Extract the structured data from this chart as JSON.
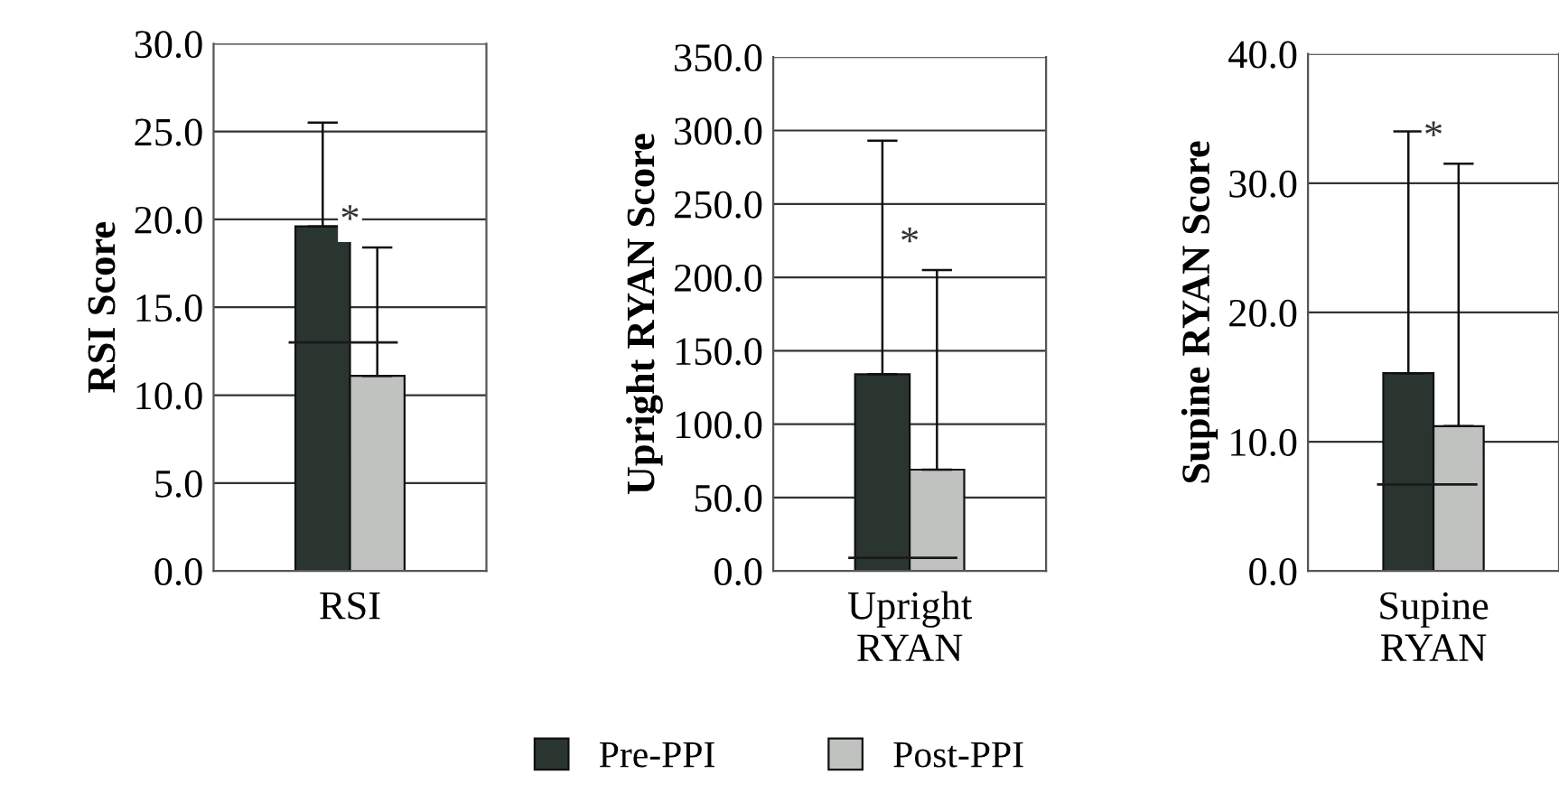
{
  "chart_data": [
    {
      "type": "bar",
      "categories": [
        "RSI"
      ],
      "ylabel": "RSI Score",
      "ylim": [
        0,
        30
      ],
      "yticks": [
        {
          "value": 0,
          "label": "0.0"
        },
        {
          "value": 5,
          "label": "5.0"
        },
        {
          "value": 10,
          "label": "10.0"
        },
        {
          "value": 15,
          "label": "15.0"
        },
        {
          "value": 20,
          "label": "20.0"
        },
        {
          "value": 25,
          "label": "25.0"
        },
        {
          "value": 30,
          "label": "30.0"
        }
      ],
      "grid": "y",
      "series": [
        {
          "color": "#2a3530",
          "values": [
            19.6
          ],
          "errors": [
            [
              19.6,
              25.5
            ]
          ]
        },
        {
          "color": "#c0c2bf",
          "values": [
            11.1
          ],
          "errors": [
            [
              11.1,
              18.4
            ]
          ]
        }
      ],
      "ref_lines": [
        {
          "axis": "y",
          "value": 13.0,
          "color": "#1a1a1a"
        }
      ],
      "annotations": [
        "*"
      ]
    },
    {
      "type": "bar",
      "categories": [
        "Upright\nRYAN"
      ],
      "ylabel": "Upright RYAN Score",
      "ylim": [
        0,
        350
      ],
      "yticks": [
        {
          "value": 0,
          "label": "0.0"
        },
        {
          "value": 50,
          "label": "50.0"
        },
        {
          "value": 100,
          "label": "100.0"
        },
        {
          "value": 150,
          "label": "150.0"
        },
        {
          "value": 200,
          "label": "200.0"
        },
        {
          "value": 250,
          "label": "250.0"
        },
        {
          "value": 300,
          "label": "300.0"
        },
        {
          "value": 350,
          "label": "350.0"
        }
      ],
      "grid": "y",
      "legend": "bottom",
      "series": [
        {
          "name": "Pre-PPI",
          "color": "#2a3530",
          "values": [
            134
          ],
          "errors": [
            [
              134,
              293
            ]
          ]
        },
        {
          "name": "Post-PPI",
          "color": "#c0c2bf",
          "values": [
            69
          ],
          "errors": [
            [
              69,
              205
            ]
          ]
        }
      ],
      "ref_lines": [
        {
          "axis": "y",
          "value": 9,
          "color": "#1a1a1a"
        }
      ],
      "annotations": [
        "*"
      ]
    },
    {
      "type": "bar",
      "categories": [
        "Supine\nRYAN"
      ],
      "ylabel": "Supine RYAN Score",
      "ylim": [
        0,
        40
      ],
      "yticks": [
        {
          "value": 0,
          "label": "0.0"
        },
        {
          "value": 10,
          "label": "10.0"
        },
        {
          "value": 20,
          "label": "20.0"
        },
        {
          "value": 30,
          "label": "30.0"
        },
        {
          "value": 40,
          "label": "40.0"
        }
      ],
      "grid": "y",
      "series": [
        {
          "color": "#2a3530",
          "values": [
            15.3
          ],
          "errors": [
            [
              15.3,
              34.0
            ]
          ]
        },
        {
          "color": "#c0c2bf",
          "values": [
            11.2
          ],
          "errors": [
            [
              11.2,
              31.5
            ]
          ]
        }
      ],
      "ref_lines": [
        {
          "axis": "y",
          "value": 6.7,
          "color": "#1a1a1a"
        }
      ],
      "annotations": [
        "*"
      ]
    }
  ]
}
